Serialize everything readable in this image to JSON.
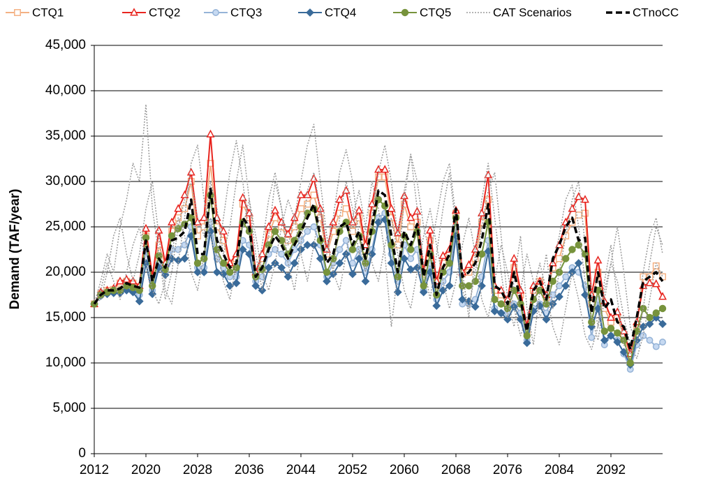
{
  "chart_data": {
    "type": "line",
    "y_label": "Demand (TAF/year)",
    "x": [
      2012,
      2013,
      2014,
      2015,
      2016,
      2017,
      2018,
      2019,
      2020,
      2021,
      2022,
      2023,
      2024,
      2025,
      2026,
      2027,
      2028,
      2029,
      2030,
      2031,
      2032,
      2033,
      2034,
      2035,
      2036,
      2037,
      2038,
      2039,
      2040,
      2041,
      2042,
      2043,
      2044,
      2045,
      2046,
      2047,
      2048,
      2049,
      2050,
      2051,
      2052,
      2053,
      2054,
      2055,
      2056,
      2057,
      2058,
      2059,
      2060,
      2061,
      2062,
      2063,
      2064,
      2065,
      2066,
      2067,
      2068,
      2069,
      2070,
      2071,
      2072,
      2073,
      2074,
      2075,
      2076,
      2077,
      2078,
      2079,
      2080,
      2081,
      2082,
      2083,
      2084,
      2085,
      2086,
      2087,
      2088,
      2089,
      2090,
      2091,
      2092,
      2093,
      2094,
      2095,
      2096,
      2097,
      2098,
      2099,
      2100
    ],
    "xlim": [
      2012,
      2100
    ],
    "xticks": [
      2012,
      2020,
      2028,
      2036,
      2044,
      2052,
      2060,
      2068,
      2076,
      2084,
      2092
    ],
    "ylim": [
      0,
      45000
    ],
    "yticks": [
      0,
      {
        "value": 5000,
        "label": "5,000"
      },
      {
        "value": 10000,
        "label": "10,000"
      },
      {
        "value": 15000,
        "label": "15,000"
      },
      {
        "value": 20000,
        "label": "20,000"
      },
      {
        "value": 25000,
        "label": "25,000"
      },
      {
        "value": 30000,
        "label": "30,000"
      },
      {
        "value": 35000,
        "label": "35,000"
      },
      {
        "value": 40000,
        "label": "40,000"
      },
      {
        "value": 45000,
        "label": "45,000"
      }
    ],
    "grid": true,
    "legend": "top",
    "series": [
      {
        "name": "CTQ1",
        "color": "#f4b183",
        "marker": "square",
        "line_style": "solid",
        "values": [
          16500,
          17600,
          18000,
          18100,
          18800,
          19000,
          18800,
          18400,
          24000,
          19200,
          23000,
          20800,
          24500,
          26000,
          27000,
          30000,
          24000,
          25000,
          32000,
          25000,
          23500,
          20800,
          21500,
          27500,
          26000,
          19800,
          21500,
          24200,
          26000,
          25000,
          23500,
          25000,
          27000,
          27500,
          28500,
          26000,
          22000,
          24500,
          26500,
          27000,
          24500,
          26000,
          22500,
          26500,
          30500,
          30500,
          26000,
          23000,
          27500,
          25000,
          25500,
          19800,
          23500,
          18500,
          21000,
          22000,
          26500,
          19800,
          20000,
          21500,
          25500,
          28000,
          18000,
          17500,
          16500,
          20500,
          17500,
          13500,
          18000,
          19000,
          17200,
          20500,
          21500,
          24000,
          25500,
          26300,
          26500,
          16500,
          20000,
          16000,
          14500,
          15000,
          13000,
          10800,
          14000,
          19500,
          19500,
          20700,
          19500
        ]
      },
      {
        "name": "CTQ2",
        "color": "#e8251f",
        "marker": "triangle",
        "line_style": "solid",
        "values": [
          16500,
          17800,
          18000,
          18200,
          19000,
          19200,
          19000,
          18500,
          24800,
          19500,
          24600,
          21000,
          25500,
          27000,
          28500,
          31000,
          25500,
          26000,
          35200,
          26000,
          24500,
          21000,
          22000,
          28200,
          26500,
          20000,
          22000,
          25000,
          26800,
          25500,
          24200,
          26000,
          28500,
          28500,
          30300,
          27000,
          22500,
          25500,
          28000,
          29000,
          25500,
          26800,
          23000,
          27500,
          31300,
          31300,
          27000,
          24300,
          28400,
          26000,
          26700,
          20000,
          24600,
          19000,
          21800,
          22500,
          26800,
          20000,
          20800,
          22500,
          26500,
          30700,
          18500,
          18000,
          17000,
          21500,
          18000,
          14000,
          18500,
          19000,
          17500,
          21000,
          23000,
          25500,
          27000,
          28300,
          28000,
          17500,
          21300,
          16800,
          15000,
          15600,
          13500,
          11000,
          14500,
          18500,
          18800,
          18700,
          17300
        ]
      },
      {
        "name": "CTQ3",
        "color": "#95b3d7",
        "marker": "circle",
        "line_style": "solid",
        "values": [
          16500,
          17400,
          17700,
          17800,
          17800,
          18200,
          18000,
          17500,
          22500,
          18000,
          21000,
          20000,
          22500,
          22500,
          23000,
          25000,
          20500,
          20500,
          25500,
          21500,
          20500,
          19500,
          19500,
          23500,
          23000,
          19000,
          19500,
          22000,
          22500,
          22000,
          21000,
          22500,
          23500,
          24500,
          25000,
          23000,
          19500,
          21000,
          22500,
          23500,
          21000,
          22500,
          20000,
          22500,
          26000,
          26500,
          22000,
          19000,
          23000,
          21500,
          22500,
          18000,
          21000,
          17000,
          19000,
          20000,
          25000,
          16500,
          16500,
          17000,
          19500,
          23500,
          16000,
          15500,
          15500,
          16500,
          15500,
          12500,
          16000,
          16500,
          15500,
          17500,
          18500,
          19500,
          20500,
          20000,
          18500,
          12800,
          17000,
          12000,
          13000,
          12500,
          11000,
          9300,
          12000,
          13000,
          12500,
          11800,
          12300
        ]
      },
      {
        "name": "CTQ4",
        "color": "#3a6b9a",
        "marker": "diamond",
        "line_style": "solid",
        "values": [
          16500,
          17400,
          17600,
          17700,
          17700,
          18000,
          17800,
          16800,
          21000,
          17600,
          20500,
          19700,
          21500,
          21300,
          21500,
          24000,
          20000,
          20000,
          24500,
          20000,
          19800,
          18500,
          18800,
          22500,
          22000,
          18500,
          18000,
          20500,
          21000,
          20500,
          19500,
          21000,
          22500,
          23000,
          23000,
          21500,
          19000,
          19800,
          21000,
          22000,
          19800,
          21500,
          19000,
          22000,
          25500,
          25800,
          21000,
          17800,
          21500,
          20300,
          20500,
          17800,
          20000,
          16300,
          18000,
          18500,
          24000,
          17000,
          16800,
          16200,
          18500,
          22300,
          15700,
          15500,
          14800,
          16200,
          14800,
          12200,
          15700,
          16300,
          14800,
          16500,
          17300,
          18500,
          20000,
          21000,
          17500,
          14000,
          16000,
          12500,
          13000,
          12300,
          11200,
          9800,
          12500,
          14000,
          14300,
          15000,
          14300
        ]
      },
      {
        "name": "CTQ5",
        "color": "#77933c",
        "marker": "dot",
        "line_style": "solid",
        "values": [
          16500,
          17500,
          17800,
          18000,
          18000,
          18500,
          18300,
          18000,
          23800,
          18500,
          21800,
          20300,
          24000,
          24800,
          25300,
          26000,
          21000,
          21500,
          28500,
          22500,
          21000,
          20000,
          20500,
          25500,
          24500,
          19500,
          20300,
          23000,
          24500,
          23500,
          22000,
          23500,
          25000,
          26500,
          27000,
          23500,
          20000,
          21500,
          24500,
          25500,
          22500,
          24000,
          21000,
          24500,
          28000,
          27300,
          23000,
          19500,
          24000,
          22500,
          24500,
          18500,
          22000,
          17500,
          20000,
          21000,
          26000,
          18500,
          18500,
          19000,
          22000,
          25500,
          17000,
          16500,
          16000,
          18000,
          16500,
          13000,
          17000,
          18000,
          16500,
          19000,
          20000,
          21500,
          22500,
          23000,
          22000,
          14500,
          18000,
          13500,
          13800,
          13300,
          12500,
          10000,
          13500,
          16000,
          15000,
          15500,
          16000
        ]
      },
      {
        "name": "CAT Scenarios",
        "color": "#9a9a9a",
        "marker": "none",
        "line_style": "dotted",
        "lines": [
          [
            16500,
            19000,
            22000,
            20000,
            25000,
            28000,
            32000,
            30000,
            38500,
            27000,
            22000,
            17000,
            20000,
            25000,
            28000,
            30000,
            26000,
            24000,
            30000,
            27000,
            22000,
            25000,
            30000,
            34000,
            28000,
            22000,
            18000,
            24000,
            30000,
            27000,
            23000,
            26000,
            30000,
            34000,
            36300,
            30000,
            24000,
            20000,
            26000,
            30000,
            27000,
            22000,
            25000,
            30000,
            27000,
            22000,
            14000,
            20000,
            28000,
            33000,
            30000,
            25000,
            22000,
            26000,
            30000,
            32000,
            26000,
            20000,
            15000,
            22000,
            28000,
            32000,
            26000,
            20000,
            15000,
            19000,
            24000,
            16000,
            12000,
            18000,
            22000,
            16000,
            20000,
            24000,
            28000,
            30000,
            23000,
            18000,
            14000,
            19000,
            23000,
            17000,
            12000,
            11000,
            15000,
            20000,
            24000,
            26000,
            22000
          ],
          [
            16500,
            17000,
            20000,
            24000,
            26000,
            22000,
            19000,
            22000,
            27000,
            30000,
            24000,
            18000,
            16500,
            21000,
            26000,
            32000,
            34000,
            28000,
            24000,
            21000,
            26000,
            31000,
            34500,
            30000,
            24000,
            19000,
            23000,
            28000,
            31000,
            27000,
            21000,
            18000,
            23000,
            29000,
            31000,
            27000,
            22000,
            26000,
            31000,
            33500,
            30000,
            24000,
            20000,
            26000,
            31000,
            34000,
            30000,
            24000,
            29000,
            33000,
            27000,
            21000,
            17000,
            22000,
            27000,
            31000,
            25000,
            18000,
            16000,
            20000,
            25000,
            29000,
            31000,
            24000,
            17000,
            14000,
            18000,
            22000,
            19000,
            15000,
            17000,
            21000,
            24000,
            28000,
            29600,
            25000,
            19000,
            15000,
            12500,
            17000,
            21000,
            25000,
            20000,
            14000,
            12000,
            16000,
            21000,
            25000,
            23000
          ],
          [
            16500,
            18000,
            21000,
            19000,
            17000,
            20000,
            23000,
            25000,
            21000,
            18000,
            16500,
            19000,
            22000,
            26000,
            24000,
            20000,
            18000,
            22000,
            26000,
            23000,
            19000,
            17000,
            21000,
            25000,
            28000,
            24000,
            20000,
            18000,
            21000,
            25000,
            28000,
            26000,
            22000,
            19000,
            23000,
            27000,
            24000,
            20000,
            18000,
            22000,
            26000,
            29000,
            25000,
            21000,
            19000,
            23000,
            26000,
            22000,
            18000,
            16000,
            20000,
            24000,
            27000,
            23000,
            19000,
            16000,
            19000,
            23000,
            26000,
            22000,
            17000,
            15000,
            19000,
            23000,
            20000,
            16000,
            13000,
            15000,
            18000,
            21000,
            18000,
            14000,
            12000,
            16000,
            20000,
            17000,
            13000,
            11500,
            14000,
            18000,
            21000,
            19000,
            15000,
            12000,
            10500,
            13000,
            17000,
            21000,
            19500
          ]
        ]
      },
      {
        "name": "CTnoCC",
        "color": "#000000",
        "marker": "none",
        "line_style": "dashed",
        "values": [
          16500,
          17500,
          18000,
          18000,
          18200,
          18800,
          18500,
          18300,
          23500,
          19000,
          21500,
          20500,
          23500,
          23800,
          24500,
          28000,
          22000,
          22000,
          29200,
          23500,
          22000,
          20500,
          21000,
          26000,
          25000,
          19500,
          20500,
          22500,
          24000,
          23000,
          21500,
          23000,
          24500,
          26000,
          27500,
          24000,
          21000,
          22000,
          25000,
          25500,
          23000,
          24500,
          21500,
          25000,
          29000,
          28500,
          24000,
          20000,
          24500,
          23000,
          25300,
          19500,
          23000,
          17500,
          20500,
          22000,
          27000,
          19500,
          20000,
          21000,
          23500,
          27500,
          18500,
          18000,
          16500,
          20000,
          17000,
          13500,
          18000,
          19000,
          17000,
          21500,
          23000,
          25000,
          26000,
          23500,
          23800,
          15500,
          20000,
          16000,
          17000,
          14500,
          14000,
          11500,
          15000,
          19000,
          19500,
          20000,
          19000
        ]
      }
    ]
  }
}
